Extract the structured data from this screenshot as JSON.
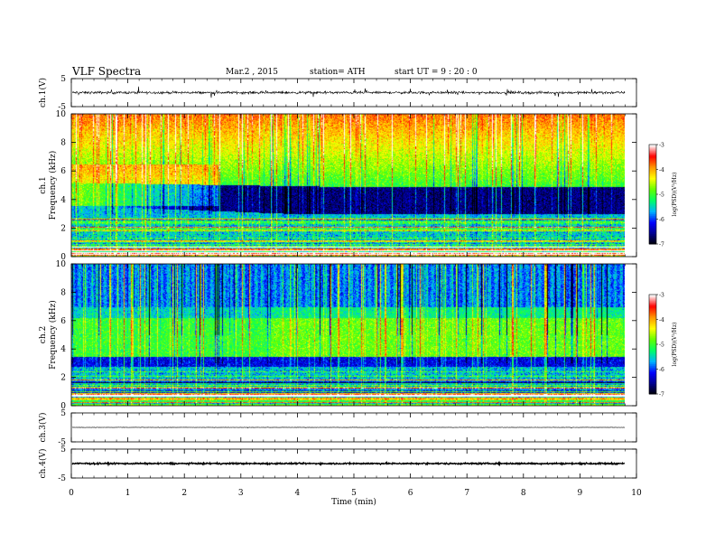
{
  "header": {
    "title": "VLF  Spectra",
    "date": "Mar.2  , 2015",
    "station": "station= ATH",
    "start": "start  UT =   9 : 20 : 0"
  },
  "chart_data": [
    {
      "type": "line",
      "panel": "ch1-waveform",
      "ylabel": "ch.1(V)",
      "ylim": [
        -5,
        5
      ],
      "yticks": [
        "5",
        "-5"
      ],
      "baseline": 0,
      "x_range": [
        0,
        9.8
      ]
    },
    {
      "type": "heatmap",
      "panel": "ch1-spectrogram",
      "ylabel": "ch.1\nFrequency  (kHz)",
      "ylim": [
        0,
        10
      ],
      "yticks": [
        "0",
        "2",
        "4",
        "6",
        "8",
        "10"
      ],
      "x_range": [
        0,
        9.8
      ],
      "colorbar": {
        "label": "log(PSD)(V²/Hz)",
        "range": [
          -7,
          -3
        ],
        "ticks": [
          "-3",
          "-4",
          "-5",
          "-6",
          "-7"
        ]
      }
    },
    {
      "type": "heatmap",
      "panel": "ch2-spectrogram",
      "ylabel": "ch.2\nFrequency  (kHz)",
      "ylim": [
        0,
        10
      ],
      "yticks": [
        "0",
        "2",
        "4",
        "6",
        "8",
        "10"
      ],
      "x_range": [
        0,
        9.8
      ],
      "colorbar": {
        "label": "log(PSD)(V²/Hz)",
        "range": [
          -7,
          -3
        ],
        "ticks": [
          "-3",
          "-4",
          "-5",
          "-6",
          "-7"
        ]
      }
    },
    {
      "type": "line",
      "panel": "ch3-waveform",
      "ylabel": "ch.3(V)",
      "ylim": [
        -5,
        5
      ],
      "yticks": [
        "5",
        "-5"
      ],
      "baseline": 0,
      "x_range": [
        0,
        9.8
      ]
    },
    {
      "type": "line",
      "panel": "ch4-waveform",
      "ylabel": "ch.4(V)",
      "ylim": [
        -5,
        5
      ],
      "yticks": [
        "5",
        "-5"
      ],
      "baseline": 0,
      "x_range": [
        0,
        9.8
      ]
    }
  ],
  "xaxis": {
    "label": "Time  (min)",
    "range": [
      0,
      10
    ],
    "ticks": [
      "0",
      "1",
      "2",
      "3",
      "4",
      "5",
      "6",
      "7",
      "8",
      "9",
      "10"
    ]
  },
  "colors": {
    "cmap": [
      "#000000",
      "#00008c",
      "#0000ff",
      "#00b4ff",
      "#00ff64",
      "#64ff00",
      "#ffff00",
      "#ff9600",
      "#ff0000",
      "#ffffff"
    ],
    "trace": "#000000"
  }
}
